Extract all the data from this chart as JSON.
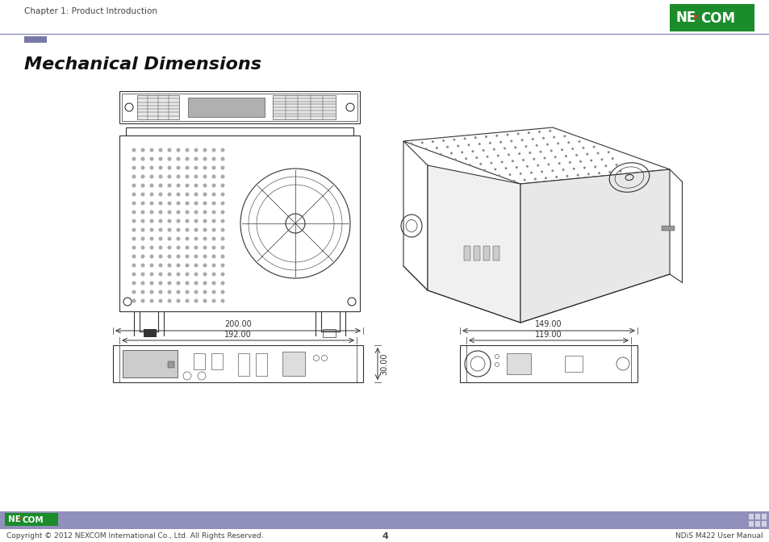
{
  "page_title": "Chapter 1: Product Introduction",
  "section_title": "Mechanical Dimensions",
  "footer_left": "Copyright © 2012 NEXCOM International Co., Ltd. All Rights Reserved.",
  "footer_center": "4",
  "footer_right": "NDiS M422 User Manual",
  "bg_color": "#ffffff",
  "header_line_color": "#9090bb",
  "header_bar_color": "#7878a8",
  "footer_bar_color": "#9090bb",
  "nexcom_bg": "#1a8c2a",
  "dim_color": "#222222",
  "drawing_color": "#333333",
  "dim1_w": "200.00",
  "dim1_inner": "192.00",
  "dim1_h": "30.00",
  "dim2_w": "149.00",
  "dim2_inner": "119.00"
}
